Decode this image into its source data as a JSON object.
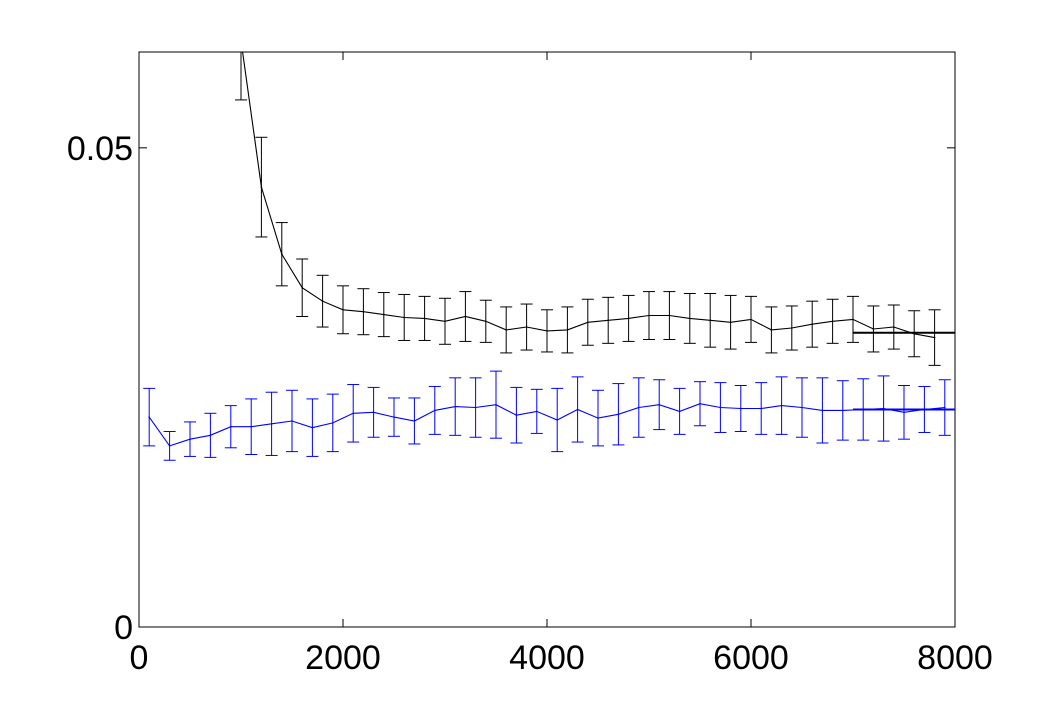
{
  "chart_data": {
    "type": "line",
    "title": "",
    "xlabel": "",
    "ylabel": "",
    "xlim": [
      0,
      8000
    ],
    "ylim": [
      0,
      0.06
    ],
    "grid": false,
    "x_ticks": [
      0,
      2000,
      4000,
      6000,
      8000
    ],
    "x_tick_labels": [
      "0",
      "2000",
      "4000",
      "6000",
      "8000"
    ],
    "y_ticks": [
      0,
      0.05
    ],
    "y_tick_labels": [
      "0",
      "0.05"
    ],
    "series": [
      {
        "color": "#000000",
        "x": [
          1000,
          1200,
          1400,
          1600,
          1800,
          2000,
          2200,
          2400,
          2600,
          2800,
          3000,
          3200,
          3400,
          3600,
          3800,
          4000,
          4200,
          4400,
          4600,
          4800,
          5000,
          5200,
          5400,
          5600,
          5800,
          6000,
          6200,
          6400,
          6600,
          6800,
          7000,
          7200,
          7400,
          7600,
          7800
        ],
        "y": [
          0.0612,
          0.0459,
          0.0389,
          0.0354,
          0.034,
          0.0331,
          0.0329,
          0.0326,
          0.0323,
          0.0322,
          0.0319,
          0.0324,
          0.0319,
          0.031,
          0.0313,
          0.0309,
          0.031,
          0.0318,
          0.032,
          0.0322,
          0.0325,
          0.0325,
          0.0322,
          0.032,
          0.0318,
          0.0321,
          0.031,
          0.0312,
          0.0316,
          0.0319,
          0.0321,
          0.0311,
          0.0313,
          0.0306,
          0.0302
        ],
        "err": [
          0.0062,
          0.0052,
          0.0033,
          0.003,
          0.0027,
          0.0025,
          0.0024,
          0.0023,
          0.0024,
          0.0023,
          0.0024,
          0.0026,
          0.0022,
          0.0024,
          0.0024,
          0.0022,
          0.0024,
          0.0024,
          0.0024,
          0.0024,
          0.0025,
          0.0025,
          0.0026,
          0.0028,
          0.0028,
          0.0024,
          0.0024,
          0.0023,
          0.0024,
          0.0023,
          0.0024,
          0.0024,
          0.0023,
          0.0024,
          0.0029
        ],
        "mean_level": 0.0307,
        "mean_level_xrange": [
          7000,
          8000
        ]
      },
      {
        "color": "#0000ff",
        "x": [
          100,
          300,
          500,
          700,
          900,
          1100,
          1300,
          1500,
          1700,
          1900,
          2100,
          2300,
          2500,
          2700,
          2900,
          3100,
          3300,
          3500,
          3700,
          3900,
          4100,
          4300,
          4500,
          4700,
          4900,
          5100,
          5300,
          5500,
          5700,
          5900,
          6100,
          6300,
          6500,
          6700,
          6900,
          7100,
          7300,
          7500,
          7700,
          7900
        ],
        "y": [
          0.0219,
          0.0189,
          0.0196,
          0.02,
          0.0209,
          0.0209,
          0.0212,
          0.0215,
          0.0208,
          0.0213,
          0.0223,
          0.0224,
          0.0219,
          0.0215,
          0.0226,
          0.023,
          0.0229,
          0.0232,
          0.0221,
          0.0225,
          0.0216,
          0.0227,
          0.0218,
          0.0222,
          0.0229,
          0.0232,
          0.0225,
          0.0233,
          0.0229,
          0.0228,
          0.0228,
          0.0231,
          0.0229,
          0.0226,
          0.0226,
          0.0227,
          0.0228,
          0.0224,
          0.0227,
          0.0229
        ],
        "err": [
          0.003,
          0.0015,
          0.0018,
          0.0023,
          0.0022,
          0.0029,
          0.0033,
          0.0032,
          0.003,
          0.003,
          0.003,
          0.0026,
          0.002,
          0.0024,
          0.0025,
          0.003,
          0.0031,
          0.0035,
          0.0029,
          0.0023,
          0.0033,
          0.0034,
          0.0029,
          0.0032,
          0.0031,
          0.0026,
          0.0024,
          0.0023,
          0.0026,
          0.0024,
          0.0027,
          0.003,
          0.0031,
          0.0034,
          0.0031,
          0.0032,
          0.0034,
          0.0028,
          0.0024,
          0.0029
        ],
        "mean_level": 0.0227,
        "mean_level_xrange": [
          7000,
          8000
        ]
      }
    ]
  }
}
